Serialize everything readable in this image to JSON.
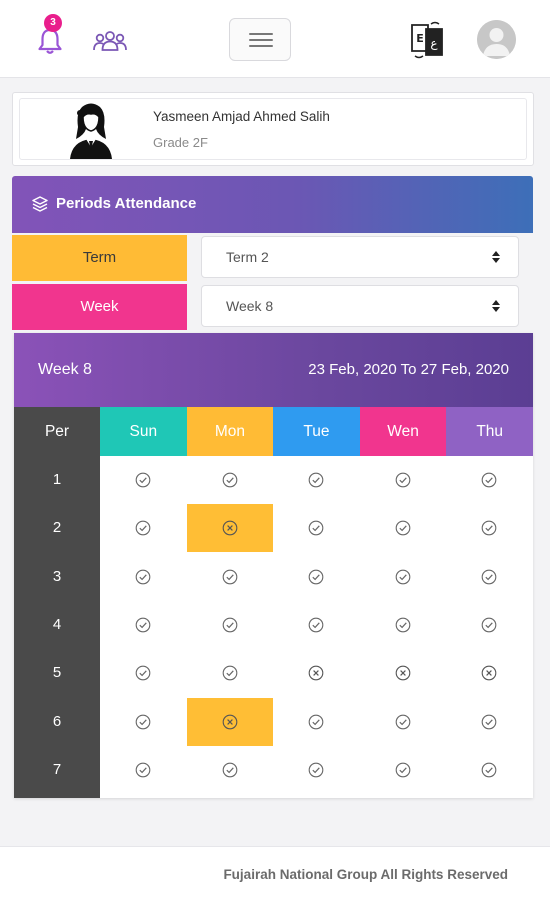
{
  "topbar": {
    "notification_count": "3",
    "icons": [
      "bell-icon",
      "group-icon",
      "menu-icon",
      "language-icon",
      "user-avatar"
    ],
    "badge_color": "#e91e8c"
  },
  "student": {
    "name": "Yasmeen Amjad Ahmed Salih",
    "grade": "Grade 2F"
  },
  "panel": {
    "title": "Periods Attendance"
  },
  "filters": {
    "term_label": "Term",
    "term_value": "Term 2",
    "week_label": "Week",
    "week_value": "Week 8"
  },
  "attendance": {
    "week_title": "Week 8",
    "date_range": "23 Feb, 2020 To 27 Feb, 2020",
    "period_header": "Per",
    "days": [
      {
        "label": "Sun",
        "color": "#1fc7b6"
      },
      {
        "label": "Mon",
        "color": "#ffbb35"
      },
      {
        "label": "Tue",
        "color": "#2f9bf0"
      },
      {
        "label": "Wen",
        "color": "#f1358e"
      },
      {
        "label": "Thu",
        "color": "#8f62c4"
      }
    ],
    "periods": [
      {
        "number": "1",
        "status": [
          "present",
          "present",
          "present",
          "present",
          "present"
        ]
      },
      {
        "number": "2",
        "status": [
          "present",
          "absent",
          "present",
          "present",
          "present"
        ]
      },
      {
        "number": "3",
        "status": [
          "present",
          "present",
          "present",
          "present",
          "present"
        ]
      },
      {
        "number": "4",
        "status": [
          "present",
          "present",
          "present",
          "present",
          "present"
        ]
      },
      {
        "number": "5",
        "status": [
          "present",
          "present",
          "absent",
          "absent",
          "absent"
        ]
      },
      {
        "number": "6",
        "status": [
          "present",
          "absent",
          "present",
          "present",
          "present"
        ]
      },
      {
        "number": "7",
        "status": [
          "present",
          "present",
          "present",
          "present",
          "present"
        ]
      }
    ],
    "highlighted_cells": [
      [
        1,
        1
      ],
      [
        5,
        1
      ]
    ]
  },
  "footer": {
    "text": "Fujairah National Group All Rights Reserved"
  }
}
